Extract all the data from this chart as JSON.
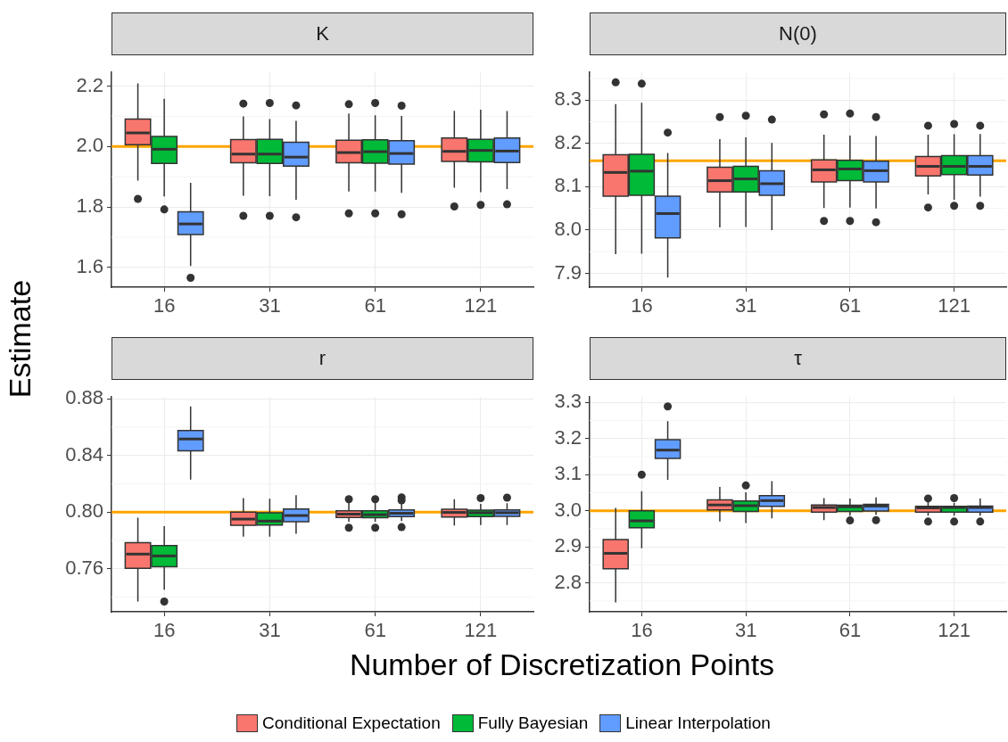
{
  "chart_data": [
    {
      "type": "box",
      "title": "K",
      "ylabel": "Estimate",
      "legend": "bottom",
      "categories": [
        "16",
        "31",
        "61",
        "121"
      ],
      "ylim": [
        1.535,
        2.245
      ],
      "yticks": [
        1.6,
        1.8,
        {
          "value": 2,
          "label": "2.0"
        },
        2.2
      ],
      "grid": true,
      "ref_lines": [
        {
          "axis": "y",
          "value": 2,
          "color": "#ffa500"
        }
      ],
      "series": [
        {
          "name": "Conditional Expectation",
          "color": "#f8766d",
          "boxes": [
            {
              "low": 1.887,
              "q1": 2.006,
              "median": 2.045,
              "q3": 2.091,
              "high": 2.209,
              "outliers": [
                1.827
              ]
            },
            {
              "low": 1.837,
              "q1": 1.946,
              "median": 1.975,
              "q3": 2.023,
              "high": 2.1,
              "outliers": [
                2.142,
                1.771
              ]
            },
            {
              "low": 1.851,
              "q1": 1.946,
              "median": 1.98,
              "q3": 2.021,
              "high": 2.109,
              "outliers": [
                2.14,
                1.779
              ]
            },
            {
              "low": 1.864,
              "q1": 1.951,
              "median": 1.984,
              "q3": 2.028,
              "high": 2.118,
              "outliers": [
                1.802
              ]
            }
          ]
        },
        {
          "name": "Fully Bayesian",
          "color": "#00ba38",
          "boxes": [
            {
              "low": 1.835,
              "q1": 1.944,
              "median": 1.991,
              "q3": 2.033,
              "high": 2.158,
              "outliers": [
                1.792
              ]
            },
            {
              "low": 1.836,
              "q1": 1.944,
              "median": 1.975,
              "q3": 2.024,
              "high": 2.091,
              "outliers": [
                2.144,
                1.771
              ]
            },
            {
              "low": 1.851,
              "q1": 1.945,
              "median": 1.983,
              "q3": 2.022,
              "high": 2.103,
              "outliers": [
                2.144,
                1.779
              ]
            },
            {
              "low": 1.849,
              "q1": 1.949,
              "median": 1.987,
              "q3": 2.024,
              "high": 2.122,
              "outliers": [
                1.807
              ]
            }
          ]
        },
        {
          "name": "Linear Interpolation",
          "color": "#619cff",
          "boxes": [
            {
              "low": 1.605,
              "q1": 1.709,
              "median": 1.744,
              "q3": 1.784,
              "high": 1.88,
              "outliers": [
                1.566
              ]
            },
            {
              "low": 1.824,
              "q1": 1.935,
              "median": 1.965,
              "q3": 2.014,
              "high": 2.085,
              "outliers": [
                2.136,
                1.766
              ]
            },
            {
              "low": 1.847,
              "q1": 1.942,
              "median": 1.977,
              "q3": 2.019,
              "high": 2.101,
              "outliers": [
                2.135,
                1.776
              ]
            },
            {
              "low": 1.859,
              "q1": 1.947,
              "median": 1.985,
              "q3": 2.028,
              "high": 2.117,
              "outliers": [
                1.809
              ]
            }
          ]
        }
      ]
    },
    {
      "type": "box",
      "title": "N(0)",
      "categories": [
        "16",
        "31",
        "61",
        "121"
      ],
      "ylim": [
        7.868,
        8.364
      ],
      "yticks": [
        7.9,
        {
          "value": 8,
          "label": "8.0"
        },
        8.1,
        8.2,
        8.3
      ],
      "grid": true,
      "ref_lines": [
        {
          "axis": "y",
          "value": 8.16,
          "color": "#ffa500"
        }
      ],
      "series": [
        {
          "color": "#f8766d",
          "boxes": [
            {
              "low": 7.944,
              "q1": 8.078,
              "median": 8.133,
              "q3": 8.174,
              "high": 8.291,
              "outliers": [
                8.341
              ]
            },
            {
              "low": 8.006,
              "q1": 8.088,
              "median": 8.114,
              "q3": 8.145,
              "high": 8.21,
              "outliers": [
                8.261
              ]
            },
            {
              "low": 8.051,
              "q1": 8.111,
              "median": 8.139,
              "q3": 8.162,
              "high": 8.22,
              "outliers": [
                8.267,
                8.021
              ]
            },
            {
              "low": 8.082,
              "q1": 8.125,
              "median": 8.147,
              "q3": 8.17,
              "high": 8.22,
              "outliers": [
                8.241,
                8.052
              ]
            }
          ]
        },
        {
          "color": "#00ba38",
          "boxes": [
            {
              "low": 7.945,
              "q1": 8.08,
              "median": 8.136,
              "q3": 8.175,
              "high": 8.294,
              "outliers": [
                8.338
              ]
            },
            {
              "low": 8.007,
              "q1": 8.088,
              "median": 8.118,
              "q3": 8.147,
              "high": 8.214,
              "outliers": [
                8.264
              ]
            },
            {
              "low": 8.052,
              "q1": 8.114,
              "median": 8.141,
              "q3": 8.161,
              "high": 8.218,
              "outliers": [
                8.269,
                8.021
              ]
            },
            {
              "low": 8.07,
              "q1": 8.128,
              "median": 8.147,
              "q3": 8.172,
              "high": 8.221,
              "outliers": [
                8.245,
                8.056
              ]
            }
          ]
        },
        {
          "color": "#619cff",
          "boxes": [
            {
              "low": 7.89,
              "q1": 7.982,
              "median": 8.038,
              "q3": 8.078,
              "high": 8.178,
              "outliers": [
                8.225
              ]
            },
            {
              "low": 8.0,
              "q1": 8.08,
              "median": 8.107,
              "q3": 8.137,
              "high": 8.201,
              "outliers": [
                8.255
              ]
            },
            {
              "low": 8.05,
              "q1": 8.111,
              "median": 8.137,
              "q3": 8.159,
              "high": 8.217,
              "outliers": [
                8.261,
                8.018
              ]
            },
            {
              "low": 8.077,
              "q1": 8.127,
              "median": 8.147,
              "q3": 8.172,
              "high": 8.222,
              "outliers": [
                8.241,
                8.056
              ]
            }
          ]
        }
      ]
    },
    {
      "type": "box",
      "title": "r",
      "xlabel": "Number of Discretization Points",
      "categories": [
        "16",
        "31",
        "61",
        "121"
      ],
      "ylim": [
        0.7297,
        0.8812
      ],
      "yticks": [
        0.76,
        {
          "value": 0.8,
          "label": "0.80"
        },
        0.84,
        0.88
      ],
      "grid": true,
      "ref_lines": [
        {
          "axis": "y",
          "value": 0.8,
          "color": "#ffa500"
        }
      ],
      "series": [
        {
          "color": "#f8766d",
          "boxes": [
            {
              "low": 0.7369,
              "q1": 0.7604,
              "median": 0.7704,
              "q3": 0.7785,
              "high": 0.7961
            },
            {
              "low": 0.7827,
              "q1": 0.7907,
              "median": 0.7951,
              "q3": 0.8,
              "high": 0.8099
            },
            {
              "low": 0.7933,
              "q1": 0.7963,
              "median": 0.7986,
              "q3": 0.801,
              "high": 0.8067,
              "outliers": [
                0.8091,
                0.789
              ]
            },
            {
              "low": 0.7905,
              "q1": 0.7965,
              "median": 0.7998,
              "q3": 0.802,
              "high": 0.8091
            }
          ]
        },
        {
          "color": "#00ba38",
          "boxes": [
            {
              "low": 0.7452,
              "q1": 0.7614,
              "median": 0.7691,
              "q3": 0.7764,
              "high": 0.7901,
              "outliers": [
                0.7369
              ]
            },
            {
              "low": 0.7827,
              "q1": 0.7909,
              "median": 0.7937,
              "q3": 0.7996,
              "high": 0.8095
            },
            {
              "low": 0.7933,
              "q1": 0.7961,
              "median": 0.7982,
              "q3": 0.801,
              "high": 0.8067,
              "outliers": [
                0.8091,
                0.789
              ]
            },
            {
              "low": 0.7909,
              "q1": 0.7968,
              "median": 0.7996,
              "q3": 0.8014,
              "high": 0.8059,
              "outliers": [
                0.8099
              ]
            }
          ]
        },
        {
          "color": "#619cff",
          "boxes": [
            {
              "low": 0.8229,
              "q1": 0.8432,
              "median": 0.8516,
              "q3": 0.8575,
              "high": 0.8745
            },
            {
              "low": 0.7848,
              "q1": 0.7933,
              "median": 0.7976,
              "q3": 0.8022,
              "high": 0.812
            },
            {
              "low": 0.7937,
              "q1": 0.7968,
              "median": 0.7992,
              "q3": 0.8016,
              "high": 0.8067,
              "outliers": [
                0.8104,
                0.8083,
                0.7894
              ]
            },
            {
              "low": 0.7909,
              "q1": 0.797,
              "median": 0.7996,
              "q3": 0.8016,
              "high": 0.8063,
              "outliers": [
                0.8102
              ]
            }
          ]
        }
      ]
    },
    {
      "type": "box",
      "title": "τ",
      "categories": [
        "16",
        "31",
        "61",
        "121"
      ],
      "ylim": [
        2.72,
        3.315
      ],
      "yticks": [
        2.8,
        2.9,
        {
          "value": 3,
          "label": "3.0"
        },
        3.1,
        3.2,
        3.3
      ],
      "grid": true,
      "ref_lines": [
        {
          "axis": "y",
          "value": 3,
          "color": "#ffa500"
        }
      ],
      "series": [
        {
          "color": "#f8766d",
          "boxes": [
            {
              "low": 2.746,
              "q1": 2.839,
              "median": 2.882,
              "q3": 2.92,
              "high": 3.008
            },
            {
              "low": 2.97,
              "q1": 3.002,
              "median": 3.016,
              "q3": 3.03,
              "high": 3.066
            },
            {
              "low": 2.974,
              "q1": 2.996,
              "median": 3.009,
              "q3": 3.016,
              "high": 3.035
            },
            {
              "low": 2.986,
              "q1": 2.996,
              "median": 3.008,
              "q3": 3.012,
              "high": 3.024,
              "outliers": [
                3.034,
                2.97
              ]
            }
          ]
        },
        {
          "color": "#00ba38",
          "boxes": [
            {
              "low": 2.896,
              "q1": 2.953,
              "median": 2.972,
              "q3": 3.0,
              "high": 3.054,
              "outliers": [
                3.1
              ]
            },
            {
              "low": 2.966,
              "q1": 2.998,
              "median": 3.014,
              "q3": 3.027,
              "high": 3.051,
              "outliers": [
                3.07
              ]
            },
            {
              "low": 2.986,
              "q1": 2.998,
              "median": 3.011,
              "q3": 3.015,
              "high": 3.034,
              "outliers": [
                2.973
              ]
            },
            {
              "low": 2.986,
              "q1": 2.996,
              "median": 3.009,
              "q3": 3.012,
              "high": 3.022,
              "outliers": [
                3.035,
                2.97
              ]
            }
          ]
        },
        {
          "color": "#619cff",
          "boxes": [
            {
              "low": 3.086,
              "q1": 3.145,
              "median": 3.168,
              "q3": 3.197,
              "high": 3.248,
              "outliers": [
                3.289
              ]
            },
            {
              "low": 2.979,
              "q1": 3.012,
              "median": 3.028,
              "q3": 3.042,
              "high": 3.082
            },
            {
              "low": 2.989,
              "q1": 2.999,
              "median": 3.013,
              "q3": 3.018,
              "high": 3.037,
              "outliers": [
                2.974
              ]
            },
            {
              "low": 2.986,
              "q1": 2.996,
              "median": 3.009,
              "q3": 3.013,
              "high": 3.034,
              "outliers": [
                2.97
              ]
            }
          ]
        }
      ]
    }
  ]
}
